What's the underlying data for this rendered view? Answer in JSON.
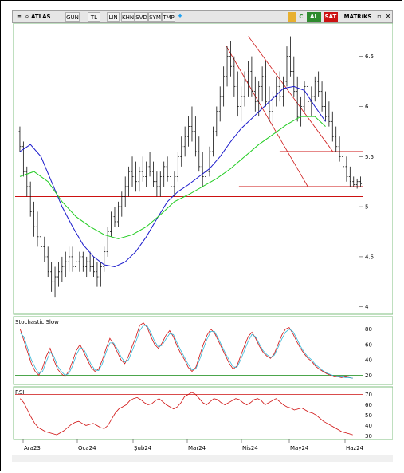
{
  "toolbar": {
    "symbol": "ATLAS",
    "buttons": [
      "GUN",
      "TL",
      "LIN",
      "KHN",
      "SVD",
      "SYM",
      "TMP"
    ],
    "al_label": "AL",
    "sat_label": "SAT",
    "matriks_label": "MATRiKS",
    "icons": [
      "twitter-icon",
      "chart-icon",
      "c-icon"
    ],
    "colors": {
      "al": "#2e8b2e",
      "sat": "#cc1111"
    }
  },
  "chart_data": [
    {
      "type": "candlestick",
      "title": "",
      "x_ticks": [
        "Ara23",
        "Oca24",
        "Şub24",
        "Mar24",
        "Nis24",
        "May24",
        "Haz24"
      ],
      "y_ticks": [
        4,
        4.5,
        5,
        5.5,
        6,
        6.5
      ],
      "ylim": [
        3.95,
        6.8
      ],
      "n_bars": 110,
      "candles": [
        [
          5.75,
          5.8,
          5.55,
          5.6
        ],
        [
          5.6,
          5.65,
          5.3,
          5.35
        ],
        [
          5.35,
          5.4,
          5.1,
          5.2
        ],
        [
          5.2,
          5.25,
          4.9,
          4.95
        ],
        [
          4.95,
          5.05,
          4.7,
          4.8
        ],
        [
          4.8,
          4.95,
          4.6,
          4.7
        ],
        [
          4.7,
          4.85,
          4.55,
          4.6
        ],
        [
          4.6,
          4.7,
          4.45,
          4.5
        ],
        [
          4.5,
          4.6,
          4.3,
          4.35
        ],
        [
          4.35,
          4.45,
          4.15,
          4.25
        ],
        [
          4.25,
          4.4,
          4.1,
          4.3
        ],
        [
          4.3,
          4.45,
          4.2,
          4.35
        ],
        [
          4.35,
          4.5,
          4.25,
          4.4
        ],
        [
          4.4,
          4.55,
          4.3,
          4.45
        ],
        [
          4.45,
          4.6,
          4.35,
          4.5
        ],
        [
          4.5,
          4.6,
          4.35,
          4.4
        ],
        [
          4.4,
          4.5,
          4.3,
          4.45
        ],
        [
          4.45,
          4.55,
          4.35,
          4.5
        ],
        [
          4.5,
          4.55,
          4.35,
          4.4
        ],
        [
          4.4,
          4.5,
          4.3,
          4.45
        ],
        [
          4.45,
          4.55,
          4.35,
          4.4
        ],
        [
          4.4,
          4.5,
          4.3,
          4.35
        ],
        [
          4.35,
          4.45,
          4.2,
          4.3
        ],
        [
          4.3,
          4.45,
          4.2,
          4.4
        ],
        [
          4.4,
          4.6,
          4.35,
          4.55
        ],
        [
          4.55,
          4.8,
          4.5,
          4.75
        ],
        [
          4.75,
          4.95,
          4.7,
          4.9
        ],
        [
          4.9,
          5.0,
          4.8,
          4.85
        ],
        [
          4.85,
          5.05,
          4.8,
          5.0
        ],
        [
          5.0,
          5.15,
          4.9,
          5.1
        ],
        [
          5.1,
          5.3,
          5.0,
          5.2
        ],
        [
          5.2,
          5.4,
          5.1,
          5.35
        ],
        [
          5.35,
          5.5,
          5.2,
          5.3
        ],
        [
          5.3,
          5.45,
          5.15,
          5.25
        ],
        [
          5.25,
          5.4,
          5.15,
          5.35
        ],
        [
          5.35,
          5.5,
          5.25,
          5.3
        ],
        [
          5.3,
          5.45,
          5.2,
          5.4
        ],
        [
          5.4,
          5.55,
          5.3,
          5.35
        ],
        [
          5.35,
          5.45,
          5.2,
          5.25
        ],
        [
          5.25,
          5.35,
          5.1,
          5.2
        ],
        [
          5.2,
          5.35,
          5.1,
          5.3
        ],
        [
          5.3,
          5.45,
          5.2,
          5.4
        ],
        [
          5.4,
          5.5,
          5.25,
          5.3
        ],
        [
          5.3,
          5.4,
          5.15,
          5.2
        ],
        [
          5.2,
          5.35,
          5.1,
          5.3
        ],
        [
          5.3,
          5.55,
          5.25,
          5.5
        ],
        [
          5.5,
          5.7,
          5.4,
          5.6
        ],
        [
          5.6,
          5.8,
          5.5,
          5.7
        ],
        [
          5.7,
          5.9,
          5.6,
          5.8
        ],
        [
          5.8,
          6.0,
          5.65,
          5.75
        ],
        [
          5.75,
          5.9,
          5.5,
          5.55
        ],
        [
          5.55,
          5.7,
          5.35,
          5.4
        ],
        [
          5.4,
          5.55,
          5.2,
          5.3
        ],
        [
          5.3,
          5.45,
          5.15,
          5.35
        ],
        [
          5.35,
          5.6,
          5.3,
          5.55
        ],
        [
          5.55,
          5.8,
          5.5,
          5.75
        ],
        [
          5.75,
          6.0,
          5.7,
          5.95
        ],
        [
          5.95,
          6.2,
          5.85,
          6.1
        ],
        [
          6.1,
          6.4,
          6.0,
          6.3
        ],
        [
          6.3,
          6.6,
          6.2,
          6.5
        ],
        [
          6.5,
          6.65,
          6.3,
          6.4
        ],
        [
          6.4,
          6.5,
          6.1,
          6.2
        ],
        [
          6.2,
          6.35,
          5.9,
          6.0
        ],
        [
          6.0,
          6.2,
          5.85,
          6.1
        ],
        [
          6.1,
          6.35,
          6.0,
          6.25
        ],
        [
          6.25,
          6.45,
          6.1,
          6.35
        ],
        [
          6.35,
          6.5,
          6.1,
          6.15
        ],
        [
          6.15,
          6.3,
          5.95,
          6.05
        ],
        [
          6.05,
          6.25,
          5.9,
          6.2
        ],
        [
          6.2,
          6.4,
          6.05,
          6.3
        ],
        [
          6.3,
          6.45,
          6.0,
          6.05
        ],
        [
          6.05,
          6.2,
          5.85,
          5.95
        ],
        [
          5.95,
          6.15,
          5.8,
          6.1
        ],
        [
          6.1,
          6.3,
          6.0,
          6.2
        ],
        [
          6.2,
          6.35,
          6.05,
          6.1
        ],
        [
          6.1,
          6.3,
          6.0,
          6.25
        ],
        [
          6.25,
          6.6,
          6.2,
          6.5
        ],
        [
          6.5,
          6.7,
          6.3,
          6.35
        ],
        [
          6.35,
          6.5,
          6.1,
          6.15
        ],
        [
          6.15,
          6.3,
          5.85,
          5.9
        ],
        [
          5.9,
          6.1,
          5.8,
          6.0
        ],
        [
          6.0,
          6.25,
          5.95,
          6.2
        ],
        [
          6.2,
          6.35,
          6.0,
          6.05
        ],
        [
          6.05,
          6.2,
          5.9,
          6.1
        ],
        [
          6.1,
          6.3,
          6.05,
          6.25
        ],
        [
          6.25,
          6.35,
          6.1,
          6.15
        ],
        [
          6.15,
          6.25,
          5.95,
          6.0
        ],
        [
          6.0,
          6.15,
          5.85,
          5.9
        ],
        [
          5.9,
          6.05,
          5.8,
          5.85
        ],
        [
          5.85,
          5.95,
          5.65,
          5.7
        ],
        [
          5.7,
          5.8,
          5.55,
          5.6
        ],
        [
          5.6,
          5.7,
          5.45,
          5.5
        ],
        [
          5.5,
          5.6,
          5.35,
          5.4
        ],
        [
          5.4,
          5.5,
          5.25,
          5.3
        ],
        [
          5.3,
          5.4,
          5.2,
          5.25
        ],
        [
          5.25,
          5.3,
          5.2,
          5.22
        ],
        [
          5.22,
          5.28,
          5.18,
          5.25
        ],
        [
          5.25,
          5.3,
          5.2,
          5.23
        ]
      ],
      "ma_blue": [
        [
          0,
          5.55
        ],
        [
          3,
          5.62
        ],
        [
          6,
          5.5
        ],
        [
          9,
          5.25
        ],
        [
          12,
          5.0
        ],
        [
          15,
          4.8
        ],
        [
          18,
          4.62
        ],
        [
          21,
          4.5
        ],
        [
          24,
          4.42
        ],
        [
          27,
          4.4
        ],
        [
          30,
          4.45
        ],
        [
          33,
          4.55
        ],
        [
          36,
          4.7
        ],
        [
          39,
          4.88
        ],
        [
          42,
          5.05
        ],
        [
          45,
          5.15
        ],
        [
          48,
          5.22
        ],
        [
          51,
          5.3
        ],
        [
          54,
          5.38
        ],
        [
          57,
          5.5
        ],
        [
          60,
          5.65
        ],
        [
          63,
          5.78
        ],
        [
          66,
          5.88
        ],
        [
          69,
          5.98
        ],
        [
          72,
          6.08
        ],
        [
          75,
          6.18
        ],
        [
          78,
          6.2
        ],
        [
          81,
          6.16
        ],
        [
          84,
          6.0
        ],
        [
          87,
          5.85
        ]
      ],
      "ma_green": [
        [
          0,
          5.3
        ],
        [
          4,
          5.35
        ],
        [
          8,
          5.25
        ],
        [
          12,
          5.05
        ],
        [
          16,
          4.9
        ],
        [
          20,
          4.8
        ],
        [
          24,
          4.72
        ],
        [
          28,
          4.68
        ],
        [
          32,
          4.72
        ],
        [
          36,
          4.8
        ],
        [
          40,
          4.92
        ],
        [
          44,
          5.05
        ],
        [
          48,
          5.12
        ],
        [
          52,
          5.2
        ],
        [
          56,
          5.28
        ],
        [
          60,
          5.38
        ],
        [
          64,
          5.5
        ],
        [
          68,
          5.62
        ],
        [
          72,
          5.72
        ],
        [
          76,
          5.82
        ],
        [
          80,
          5.9
        ],
        [
          84,
          5.9
        ],
        [
          87,
          5.8
        ]
      ],
      "horizontal_lines": [
        5.1,
        5.2,
        5.55
      ],
      "channel_lines": [
        {
          "from": [
            66,
            6.6
          ],
          "to": [
            92,
            5.2
          ]
        },
        {
          "from": [
            73,
            6.7
          ],
          "to": [
            100,
            5.55
          ]
        }
      ]
    },
    {
      "type": "line",
      "title": "Stochastic Slow",
      "y_ticks": [
        20,
        40,
        60,
        80
      ],
      "ylim": [
        10,
        92
      ],
      "levels": [
        80,
        20
      ],
      "series": [
        {
          "color": "#d01010",
          "values": [
            80,
            65,
            50,
            35,
            25,
            20,
            30,
            45,
            55,
            40,
            28,
            22,
            18,
            25,
            38,
            52,
            60,
            50,
            40,
            30,
            25,
            28,
            40,
            55,
            68,
            60,
            50,
            40,
            35,
            45,
            58,
            70,
            85,
            88,
            82,
            70,
            60,
            55,
            62,
            72,
            78,
            70,
            58,
            48,
            40,
            30,
            25,
            30,
            45,
            60,
            72,
            80,
            75,
            65,
            55,
            45,
            35,
            28,
            32,
            45,
            58,
            70,
            76,
            68,
            58,
            50,
            45,
            42,
            48,
            60,
            72,
            80,
            82,
            74,
            64,
            55,
            48,
            42,
            38,
            32,
            28,
            25,
            22,
            20,
            18,
            18,
            17,
            18,
            17,
            16
          ]
        },
        {
          "color": "#33b8d8",
          "values": [
            75,
            70,
            55,
            40,
            30,
            22,
            25,
            38,
            50,
            45,
            32,
            25,
            20,
            22,
            32,
            46,
            56,
            54,
            44,
            34,
            27,
            26,
            35,
            50,
            62,
            62,
            54,
            44,
            37,
            40,
            52,
            64,
            78,
            85,
            84,
            75,
            64,
            57,
            59,
            67,
            74,
            73,
            62,
            52,
            43,
            34,
            27,
            28,
            40,
            54,
            67,
            77,
            77,
            68,
            58,
            48,
            39,
            31,
            30,
            40,
            52,
            64,
            73,
            70,
            61,
            52,
            47,
            43,
            46,
            56,
            67,
            76,
            80,
            77,
            68,
            58,
            50,
            44,
            40,
            34,
            30,
            26,
            23,
            21,
            19,
            18,
            18,
            17,
            17,
            16
          ]
        }
      ]
    },
    {
      "type": "line",
      "title": "RSI",
      "y_ticks": [
        30,
        40,
        50,
        60,
        70
      ],
      "ylim": [
        28,
        75
      ],
      "levels": [
        70,
        30
      ],
      "series": [
        {
          "color": "#d01010",
          "values": [
            66,
            62,
            55,
            48,
            42,
            38,
            36,
            34,
            33,
            32,
            31,
            33,
            35,
            38,
            41,
            43,
            44,
            42,
            40,
            41,
            42,
            40,
            38,
            37,
            40,
            46,
            52,
            56,
            58,
            60,
            64,
            66,
            67,
            65,
            62,
            60,
            61,
            64,
            66,
            63,
            60,
            58,
            56,
            58,
            62,
            68,
            70,
            72,
            70,
            66,
            62,
            60,
            63,
            66,
            65,
            62,
            60,
            62,
            64,
            66,
            65,
            62,
            60,
            62,
            65,
            66,
            64,
            60,
            62,
            64,
            66,
            63,
            60,
            58,
            57,
            55,
            56,
            57,
            55,
            53,
            52,
            50,
            47,
            44,
            42,
            40,
            38,
            36,
            34,
            33,
            32,
            31
          ]
        }
      ]
    }
  ]
}
